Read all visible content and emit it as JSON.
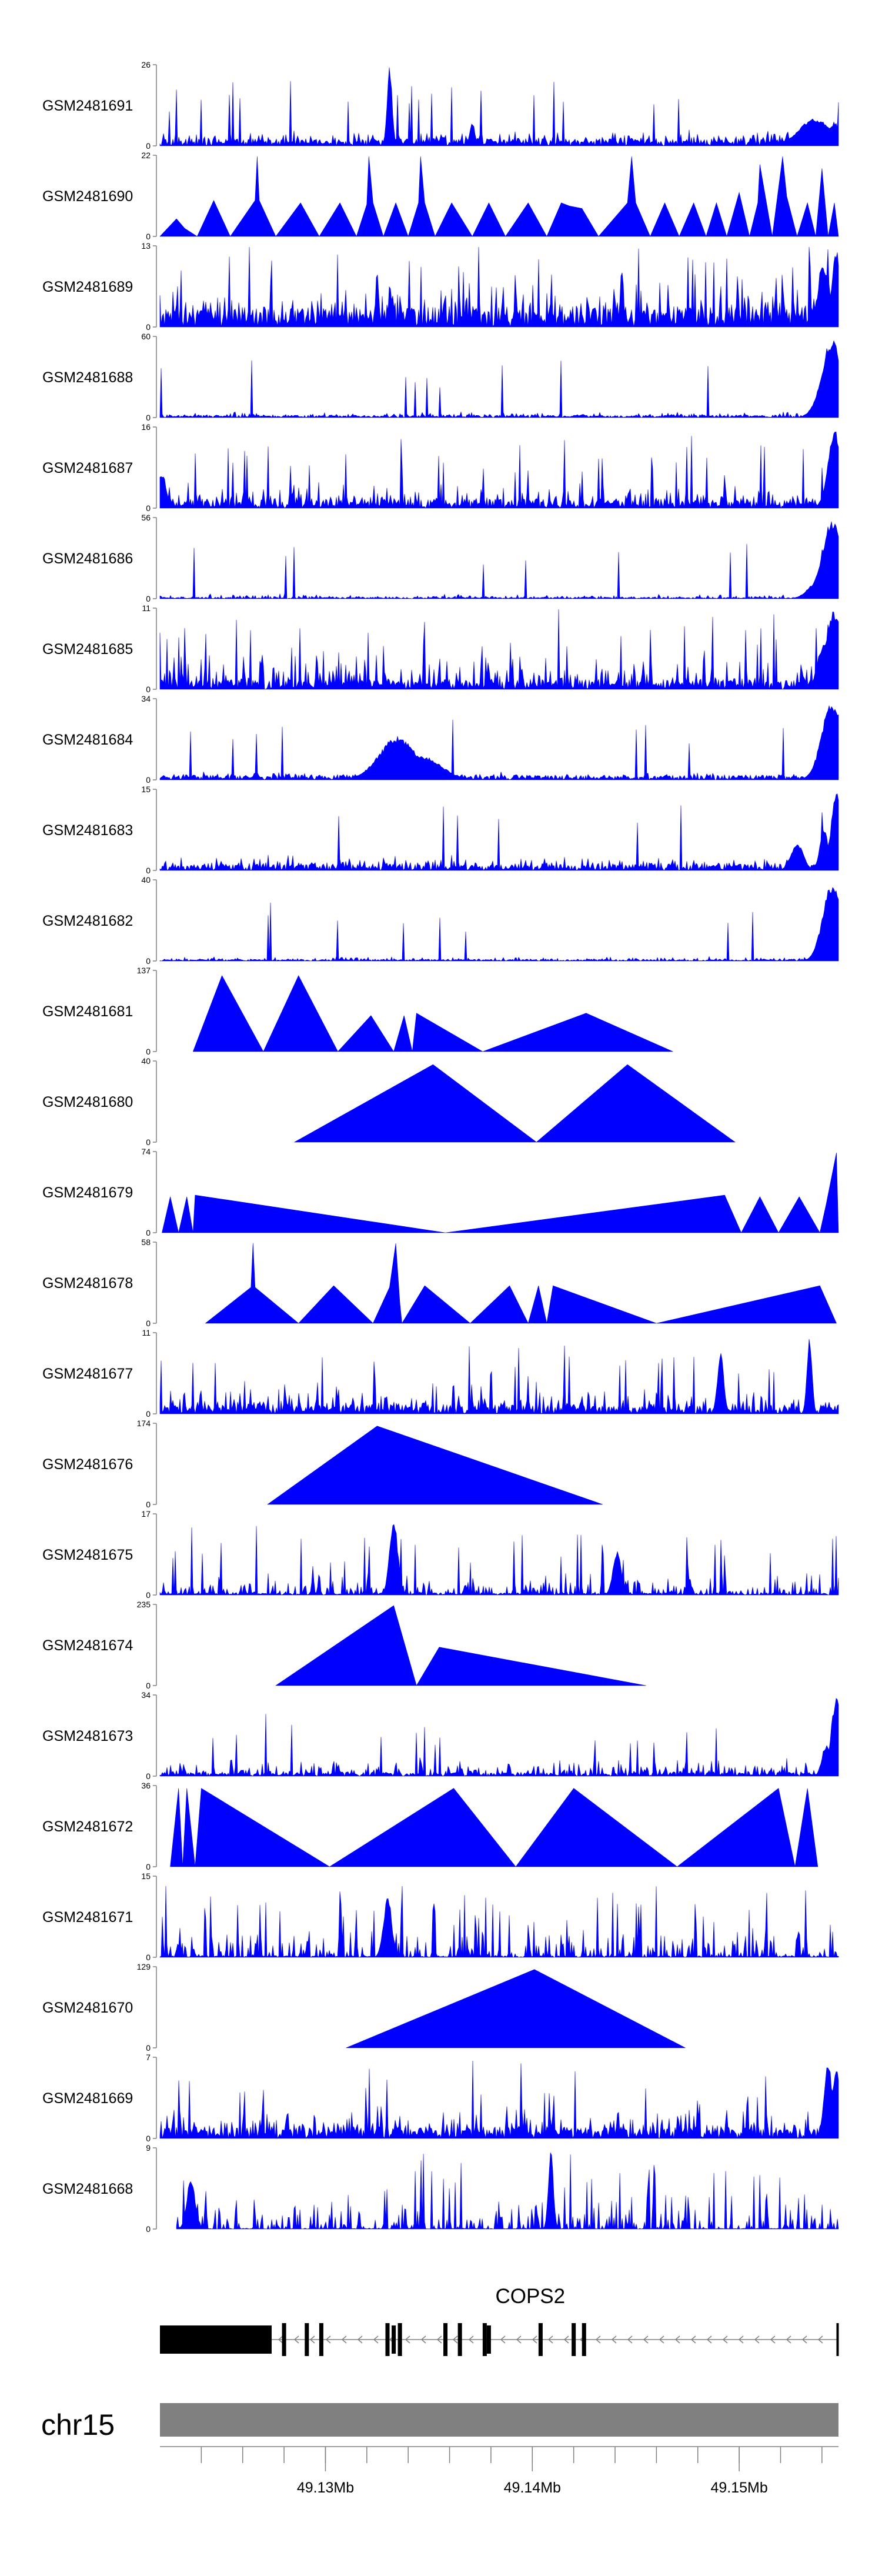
{
  "chart_data": {
    "type": "area",
    "title": "",
    "region": {
      "chrom": "chr15",
      "start": 49.122,
      "end": 49.1548,
      "unit": "Mb"
    },
    "x_ticks": [
      {
        "value": 49.13,
        "label": "49.13Mb"
      },
      {
        "value": 49.14,
        "label": "49.14Mb"
      },
      {
        "value": 49.15,
        "label": "49.15Mb"
      }
    ],
    "minor_tick_step": 0.002,
    "colors": {
      "signal": "#0000ff",
      "gene": "#000000",
      "ideogram": "#808080",
      "axis": "#808080"
    },
    "tracks": [
      {
        "name": "GSM2481691",
        "ymax": 26,
        "ytick_top": "26",
        "ytick_bottom": "0",
        "style": "dense",
        "seed": 91,
        "base": 0.09,
        "noise": 0.16,
        "spike_prob": 0.04,
        "peaks": [
          {
            "x": 49.1331,
            "h": 1.0,
            "w": 0.00012
          },
          {
            "x": 49.1371,
            "h": 0.3,
            "w": 0.00012
          },
          {
            "x": 49.1537,
            "h": 0.35,
            "w": 0.0008
          },
          {
            "x": 49.1546,
            "h": 0.3,
            "w": 0.0003
          }
        ]
      },
      {
        "name": "GSM2481690",
        "ymax": 22,
        "ytick_top": "22",
        "ytick_bottom": "0",
        "style": "polyline",
        "points": [
          [
            49.122,
            0
          ],
          [
            49.1228,
            0.22
          ],
          [
            49.1232,
            0.1
          ],
          [
            49.1238,
            0
          ],
          [
            49.1246,
            0.45
          ],
          [
            49.1254,
            0
          ],
          [
            49.1266,
            0.45
          ],
          [
            49.1267,
            1.0
          ],
          [
            49.1268,
            0.45
          ],
          [
            49.1276,
            0
          ],
          [
            49.1288,
            0.42
          ],
          [
            49.1297,
            0
          ],
          [
            49.1307,
            0.42
          ],
          [
            49.1315,
            0
          ],
          [
            49.132,
            0.4
          ],
          [
            49.1321,
            1.0
          ],
          [
            49.1323,
            0.42
          ],
          [
            49.1328,
            0
          ],
          [
            49.1334,
            0.42
          ],
          [
            49.134,
            0
          ],
          [
            49.1345,
            0.42
          ],
          [
            49.1346,
            1.0
          ],
          [
            49.1348,
            0.42
          ],
          [
            49.1353,
            0
          ],
          [
            49.1361,
            0.42
          ],
          [
            49.1371,
            0
          ],
          [
            49.1379,
            0.42
          ],
          [
            49.1387,
            0
          ],
          [
            49.1398,
            0.42
          ],
          [
            49.1407,
            0
          ],
          [
            49.1414,
            0.42
          ],
          [
            49.1418,
            0.38
          ],
          [
            49.1424,
            0.35
          ],
          [
            49.1432,
            0
          ],
          [
            49.1446,
            0.42
          ],
          [
            49.1448,
            1.0
          ],
          [
            49.145,
            0.42
          ],
          [
            49.1457,
            0
          ],
          [
            49.1464,
            0.42
          ],
          [
            49.1471,
            0
          ],
          [
            49.1478,
            0.42
          ],
          [
            49.1484,
            0
          ],
          [
            49.1489,
            0.42
          ],
          [
            49.1494,
            0
          ],
          [
            49.15,
            0.55
          ],
          [
            49.1505,
            0
          ],
          [
            49.1509,
            0.42
          ],
          [
            49.151,
            0.9
          ],
          [
            49.1512,
            0.6
          ],
          [
            49.1516,
            0
          ],
          [
            49.1521,
            1.0
          ],
          [
            49.1523,
            0.5
          ],
          [
            49.1528,
            0
          ],
          [
            49.1533,
            0.42
          ],
          [
            49.1537,
            0
          ],
          [
            49.154,
            0.85
          ],
          [
            49.1543,
            0
          ],
          [
            49.1546,
            0.42
          ],
          [
            49.1548,
            0
          ]
        ]
      },
      {
        "name": "GSM2481689",
        "ymax": 13,
        "ytick_top": "13",
        "ytick_bottom": "0",
        "style": "dense",
        "seed": 89,
        "base": 0.25,
        "noise": 0.45,
        "spike_prob": 0.06,
        "peaks": [
          {
            "x": 49.1541,
            "h": 0.75,
            "w": 0.0003
          },
          {
            "x": 49.1547,
            "h": 1.0,
            "w": 0.0002
          }
        ]
      },
      {
        "name": "GSM2481688",
        "ymax": 60,
        "ytick_top": "60",
        "ytick_bottom": "0",
        "style": "dense",
        "seed": 88,
        "base": 0.03,
        "noise": 0.06,
        "spike_prob": 0.01,
        "peaks": [
          {
            "x": 49.1545,
            "h": 1.0,
            "w": 0.0005
          },
          {
            "x": 49.154,
            "h": 0.3,
            "w": 0.0004
          }
        ]
      },
      {
        "name": "GSM2481687",
        "ymax": 16,
        "ytick_top": "16",
        "ytick_bottom": "0",
        "style": "dense",
        "seed": 87,
        "base": 0.12,
        "noise": 0.3,
        "spike_prob": 0.05,
        "peaks": [
          {
            "x": 49.1546,
            "h": 1.0,
            "w": 0.0003
          },
          {
            "x": 49.1221,
            "h": 0.45,
            "w": 0.0002
          }
        ]
      },
      {
        "name": "GSM2481686",
        "ymax": 56,
        "ytick_top": "56",
        "ytick_bottom": "0",
        "style": "dense",
        "seed": 86,
        "base": 0.02,
        "noise": 0.05,
        "spike_prob": 0.01,
        "peaks": [
          {
            "x": 49.1545,
            "h": 1.0,
            "w": 0.0005
          },
          {
            "x": 49.1539,
            "h": 0.25,
            "w": 0.0005
          }
        ]
      },
      {
        "name": "GSM2481685",
        "ymax": 11,
        "ytick_top": "11",
        "ytick_bottom": "0",
        "style": "dense",
        "seed": 85,
        "base": 0.12,
        "noise": 0.45,
        "spike_prob": 0.06,
        "peaks": [
          {
            "x": 49.1546,
            "h": 1.0,
            "w": 0.0004
          },
          {
            "x": 49.1541,
            "h": 0.6,
            "w": 0.0003
          }
        ]
      },
      {
        "name": "GSM2481684",
        "ymax": 34,
        "ytick_top": "34",
        "ytick_bottom": "0",
        "style": "dense",
        "seed": 84,
        "base": 0.06,
        "noise": 0.06,
        "spike_prob": 0.01,
        "peaks": [
          {
            "x": 49.1335,
            "h": 0.55,
            "w": 0.0009
          },
          {
            "x": 49.1347,
            "h": 0.3,
            "w": 0.0009
          },
          {
            "x": 49.1545,
            "h": 1.0,
            "w": 0.0005
          }
        ]
      },
      {
        "name": "GSM2481683",
        "ymax": 15,
        "ytick_top": "15",
        "ytick_bottom": "0",
        "style": "dense",
        "seed": 83,
        "base": 0.08,
        "noise": 0.14,
        "spike_prob": 0.02,
        "peaks": [
          {
            "x": 49.1547,
            "h": 1.0,
            "w": 0.00025
          },
          {
            "x": 49.1541,
            "h": 0.55,
            "w": 0.0002
          },
          {
            "x": 49.1528,
            "h": 0.35,
            "w": 0.0003
          }
        ]
      },
      {
        "name": "GSM2481682",
        "ymax": 40,
        "ytick_top": "40",
        "ytick_bottom": "0",
        "style": "dense",
        "seed": 82,
        "base": 0.02,
        "noise": 0.05,
        "spike_prob": 0.01,
        "peaks": [
          {
            "x": 49.1545,
            "h": 1.0,
            "w": 0.00045
          }
        ]
      },
      {
        "name": "GSM2481681",
        "ymax": 137,
        "ytick_top": "137",
        "ytick_bottom": "0",
        "style": "polyline",
        "points": [
          [
            49.1236,
            0
          ],
          [
            49.125,
            0.95
          ],
          [
            49.127,
            0
          ],
          [
            49.1287,
            0.95
          ],
          [
            49.1306,
            0
          ],
          [
            49.1322,
            0.45
          ],
          [
            49.1333,
            0
          ],
          [
            49.1338,
            0.45
          ],
          [
            49.1342,
            0
          ],
          [
            49.1344,
            0.48
          ],
          [
            49.1376,
            0
          ],
          [
            49.1426,
            0.48
          ],
          [
            49.1468,
            0
          ]
        ]
      },
      {
        "name": "GSM2481680",
        "ymax": 40,
        "ytick_top": "40",
        "ytick_bottom": "0",
        "style": "polyline",
        "points": [
          [
            49.1285,
            0
          ],
          [
            49.1352,
            0.97
          ],
          [
            49.1402,
            0
          ],
          [
            49.1446,
            0.97
          ],
          [
            49.1498,
            0
          ]
        ]
      },
      {
        "name": "GSM2481679",
        "ymax": 74,
        "ytick_top": "74",
        "ytick_bottom": "0",
        "style": "polyline",
        "points": [
          [
            49.1221,
            0
          ],
          [
            49.1225,
            0.45
          ],
          [
            49.1229,
            0
          ],
          [
            49.1233,
            0.45
          ],
          [
            49.1236,
            0
          ],
          [
            49.1237,
            0.47
          ],
          [
            49.1358,
            0
          ],
          [
            49.1493,
            0.47
          ],
          [
            49.1501,
            0
          ],
          [
            49.151,
            0.45
          ],
          [
            49.1519,
            0
          ],
          [
            49.1529,
            0.45
          ],
          [
            49.1539,
            0
          ],
          [
            49.1542,
            0.35
          ],
          [
            49.1547,
            1.0
          ],
          [
            49.1548,
            0
          ]
        ]
      },
      {
        "name": "GSM2481678",
        "ymax": 58,
        "ytick_top": "58",
        "ytick_bottom": "0",
        "style": "polyline",
        "points": [
          [
            49.1242,
            0
          ],
          [
            49.1264,
            0.45
          ],
          [
            49.1265,
            1.0
          ],
          [
            49.1266,
            0.45
          ],
          [
            49.1287,
            0
          ],
          [
            49.1304,
            0.47
          ],
          [
            49.1323,
            0
          ],
          [
            49.1331,
            0.45
          ],
          [
            49.1334,
            1.0
          ],
          [
            49.1336,
            0.25
          ],
          [
            49.1337,
            0
          ],
          [
            49.1348,
            0.47
          ],
          [
            49.137,
            0
          ],
          [
            49.1389,
            0.47
          ],
          [
            49.1398,
            0
          ],
          [
            49.1403,
            0.47
          ],
          [
            49.1407,
            0
          ],
          [
            49.141,
            0.47
          ],
          [
            49.146,
            0
          ],
          [
            49.1539,
            0.47
          ],
          [
            49.1547,
            0
          ]
        ]
      },
      {
        "name": "GSM2481677",
        "ymax": 11,
        "ytick_top": "11",
        "ytick_bottom": "0",
        "style": "dense",
        "seed": 77,
        "base": 0.12,
        "noise": 0.35,
        "spike_prob": 0.05,
        "peaks": [
          {
            "x": 49.1491,
            "h": 0.8,
            "w": 0.00015
          },
          {
            "x": 49.1534,
            "h": 1.0,
            "w": 0.00012
          }
        ]
      },
      {
        "name": "GSM2481676",
        "ymax": 174,
        "ytick_top": "174",
        "ytick_bottom": "0",
        "style": "polyline",
        "points": [
          [
            49.1272,
            0
          ],
          [
            49.1325,
            0.98
          ],
          [
            49.1434,
            0
          ]
        ]
      },
      {
        "name": "GSM2481675",
        "ymax": 17,
        "ytick_top": "17",
        "ytick_bottom": "0",
        "style": "dense",
        "seed": 75,
        "base": 0.03,
        "noise": 0.3,
        "spike_prob": 0.05,
        "peaks": [
          {
            "x": 49.1333,
            "h": 0.95,
            "w": 0.0002
          },
          {
            "x": 49.1441,
            "h": 0.55,
            "w": 0.0002
          }
        ]
      },
      {
        "name": "GSM2481674",
        "ymax": 235,
        "ytick_top": "235",
        "ytick_bottom": "0",
        "style": "polyline",
        "points": [
          [
            49.1276,
            0
          ],
          [
            49.1333,
            1.0
          ],
          [
            49.1344,
            0
          ],
          [
            49.1355,
            0.48
          ],
          [
            49.1455,
            0
          ]
        ]
      },
      {
        "name": "GSM2481673",
        "ymax": 34,
        "ytick_top": "34",
        "ytick_bottom": "0",
        "style": "dense",
        "seed": 73,
        "base": 0.05,
        "noise": 0.22,
        "spike_prob": 0.03,
        "peaks": [
          {
            "x": 49.1547,
            "h": 1.0,
            "w": 0.00025
          },
          {
            "x": 49.1542,
            "h": 0.4,
            "w": 0.0002
          }
        ]
      },
      {
        "name": "GSM2481672",
        "ymax": 36,
        "ytick_top": "36",
        "ytick_bottom": "0",
        "style": "polyline",
        "points": [
          [
            49.1225,
            0
          ],
          [
            49.1229,
            0.98
          ],
          [
            49.1231,
            0
          ],
          [
            49.1233,
            0.98
          ],
          [
            49.1237,
            0
          ],
          [
            49.124,
            0.98
          ],
          [
            49.1302,
            0
          ],
          [
            49.1362,
            0.98
          ],
          [
            49.1392,
            0
          ],
          [
            49.142,
            0.98
          ],
          [
            49.147,
            0
          ],
          [
            49.1519,
            0.98
          ],
          [
            49.1527,
            0
          ],
          [
            49.1533,
            0.98
          ],
          [
            49.1538,
            0
          ]
        ]
      },
      {
        "name": "GSM2481671",
        "ymax": 15,
        "ytick_top": "15",
        "ytick_bottom": "0",
        "style": "dense",
        "seed": 71,
        "base": 0.02,
        "noise": 0.45,
        "spike_prob": 0.08,
        "peaks": [
          {
            "x": 49.133,
            "h": 0.75,
            "w": 0.0002
          }
        ]
      },
      {
        "name": "GSM2481670",
        "ymax": 129,
        "ytick_top": "129",
        "ytick_bottom": "0",
        "style": "polyline",
        "points": [
          [
            49.131,
            0
          ],
          [
            49.1401,
            0.98
          ],
          [
            49.1474,
            0
          ]
        ]
      },
      {
        "name": "GSM2481669",
        "ymax": 7,
        "ytick_top": "7",
        "ytick_bottom": "0",
        "style": "dense",
        "seed": 69,
        "base": 0.15,
        "noise": 0.35,
        "spike_prob": 0.05,
        "peaks": [
          {
            "x": 49.1543,
            "h": 0.95,
            "w": 0.0002
          },
          {
            "x": 49.1547,
            "h": 0.9,
            "w": 0.0002
          }
        ]
      },
      {
        "name": "GSM2481668",
        "ymax": 9,
        "ytick_top": "9",
        "ytick_bottom": "0",
        "style": "dense",
        "seed": 68,
        "base": 0.01,
        "noise": 0.45,
        "spike_prob": 0.06,
        "start": 49.1228,
        "peaks": [
          {
            "x": 49.1235,
            "h": 0.65,
            "w": 0.0002
          },
          {
            "x": 49.1409,
            "h": 1.0,
            "w": 0.00012
          }
        ]
      }
    ],
    "gene": {
      "name": "COPS2",
      "strand": "-",
      "start": 49.122,
      "end": 49.1548,
      "exons": [
        {
          "start": 49.122,
          "end": 49.1274,
          "thick": true
        },
        {
          "start": 49.1279,
          "end": 49.1281,
          "thick": false
        },
        {
          "start": 49.129,
          "end": 49.1292,
          "thick": false
        },
        {
          "start": 49.1297,
          "end": 49.1299,
          "thick": false
        },
        {
          "start": 49.1329,
          "end": 49.1331,
          "thick": false
        },
        {
          "start": 49.1332,
          "end": 49.1334,
          "thick": true
        },
        {
          "start": 49.1335,
          "end": 49.1337,
          "thick": false
        },
        {
          "start": 49.1357,
          "end": 49.1359,
          "thick": false
        },
        {
          "start": 49.1364,
          "end": 49.1366,
          "thick": false
        },
        {
          "start": 49.1376,
          "end": 49.1378,
          "thick": false
        },
        {
          "start": 49.1378,
          "end": 49.138,
          "thick": true
        },
        {
          "start": 49.1403,
          "end": 49.1405,
          "thick": false
        },
        {
          "start": 49.1419,
          "end": 49.1421,
          "thick": false
        },
        {
          "start": 49.1424,
          "end": 49.1426,
          "thick": false
        },
        {
          "start": 49.1547,
          "end": 49.1548,
          "thick": false
        }
      ]
    }
  }
}
